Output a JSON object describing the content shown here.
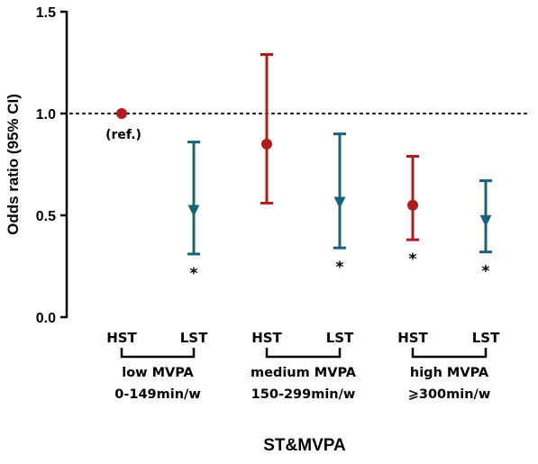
{
  "chart_data": {
    "type": "scatter",
    "xlabel": "ST&MVPA",
    "ylabel": "Odds ratio (95% CI)",
    "ylim": [
      0.0,
      1.5
    ],
    "yticks": [
      "0.0",
      "0.5",
      "1.0",
      "1.5"
    ],
    "reference_line": 1.0,
    "grid": false,
    "colors": {
      "HST": "#b01c1c",
      "LST": "#17647a"
    },
    "categories": [
      "HST",
      "LST",
      "HST",
      "LST",
      "HST",
      "LST"
    ],
    "groups": [
      {
        "name": "low MVPA",
        "range": "0-149min/w"
      },
      {
        "name": "medium MVPA",
        "range": "150-299min/w"
      },
      {
        "name": "high MVPA",
        "range": "⩾300min/w"
      }
    ],
    "points": [
      {
        "category": "HST",
        "group": 0,
        "marker": "circle",
        "or": 1.0,
        "lower": 1.0,
        "upper": 1.0,
        "annotation": "(ref.)"
      },
      {
        "category": "LST",
        "group": 0,
        "marker": "triangle-down",
        "or": 0.52,
        "lower": 0.31,
        "upper": 0.86,
        "annotation": "*"
      },
      {
        "category": "HST",
        "group": 1,
        "marker": "circle",
        "or": 0.85,
        "lower": 0.56,
        "upper": 1.29,
        "annotation": ""
      },
      {
        "category": "LST",
        "group": 1,
        "marker": "triangle-down",
        "or": 0.56,
        "lower": 0.34,
        "upper": 0.9,
        "annotation": "*"
      },
      {
        "category": "HST",
        "group": 2,
        "marker": "circle",
        "or": 0.55,
        "lower": 0.38,
        "upper": 0.79,
        "annotation": "*"
      },
      {
        "category": "LST",
        "group": 2,
        "marker": "triangle-down",
        "or": 0.47,
        "lower": 0.32,
        "upper": 0.67,
        "annotation": "*"
      }
    ]
  }
}
